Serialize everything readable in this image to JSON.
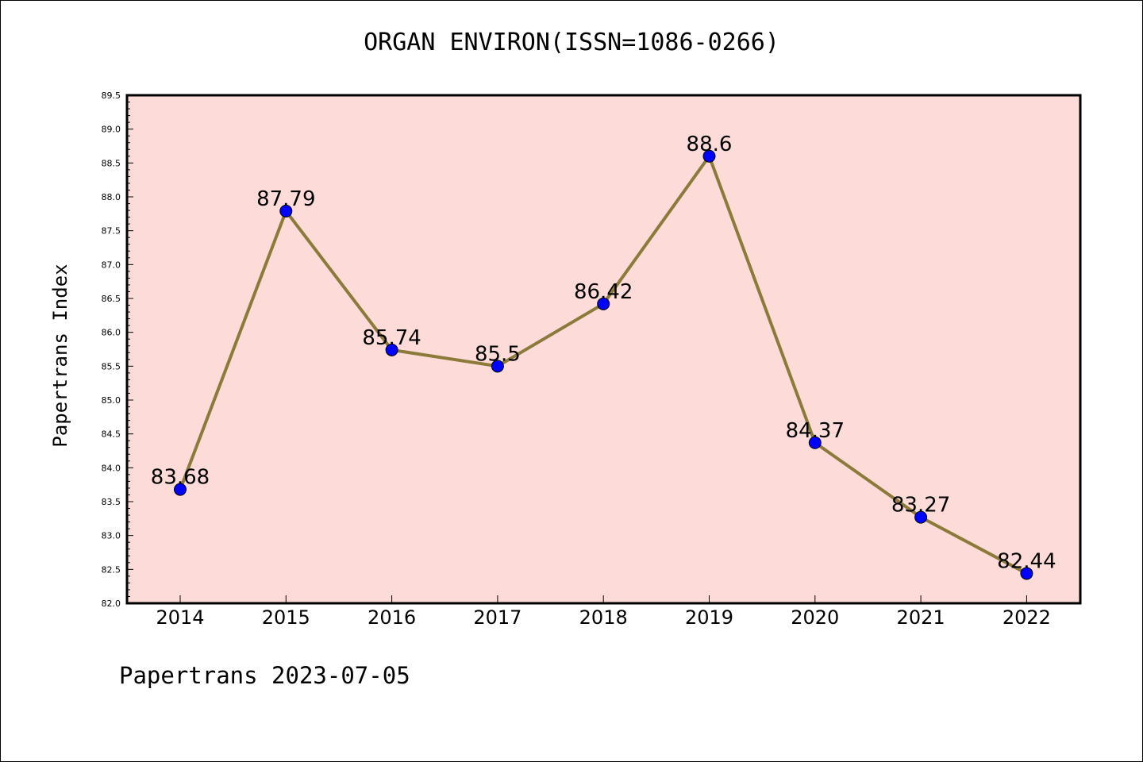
{
  "chart_data": {
    "type": "line",
    "title": "ORGAN ENVIRON(ISSN=1086-0266)",
    "xlabel": "",
    "ylabel": "Papertrans Index",
    "categories": [
      "2014",
      "2015",
      "2016",
      "2017",
      "2018",
      "2019",
      "2020",
      "2021",
      "2022"
    ],
    "values": [
      83.68,
      87.79,
      85.74,
      85.5,
      86.42,
      88.6,
      84.37,
      83.27,
      82.44
    ],
    "data_labels": [
      "83.68",
      "87.79",
      "85.74",
      "85.5",
      "86.42",
      "88.6",
      "84.37",
      "83.27",
      "82.44"
    ],
    "ylim": [
      82.0,
      89.5
    ],
    "yticks": [
      "82.0",
      "82.5",
      "83.0",
      "83.5",
      "84.0",
      "84.5",
      "85.0",
      "85.5",
      "86.0",
      "86.5",
      "87.0",
      "87.5",
      "88.0",
      "88.5",
      "89.0",
      "89.5"
    ],
    "grid": false,
    "legend": "none",
    "colors": {
      "plot_background": "#fddbd8",
      "line": "#8b7a3a",
      "marker": "#0000ff"
    }
  },
  "footer": "Papertrans 2023-07-05"
}
